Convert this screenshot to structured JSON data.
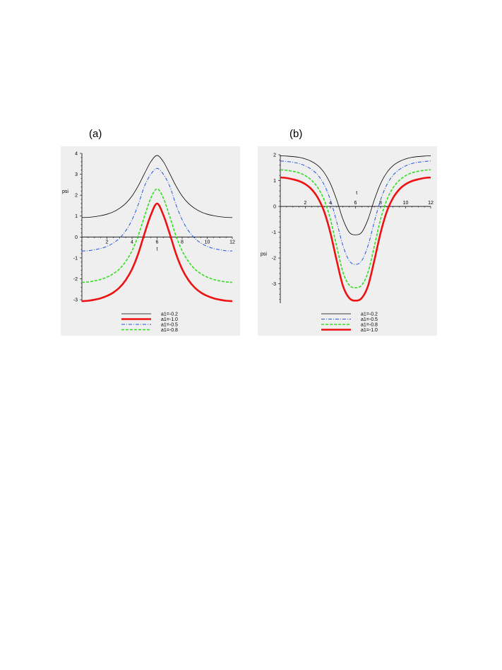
{
  "panels": {
    "a": {
      "label": "(a)"
    },
    "b": {
      "label": "(b)"
    }
  },
  "chart_data": [
    {
      "type": "line",
      "xlabel": "t",
      "ylabel": "psi",
      "xlim": [
        0,
        12
      ],
      "ylim": [
        -3.1,
        4
      ],
      "x_ticks": [
        2,
        4,
        6,
        8,
        10,
        12
      ],
      "y_ticks": [
        -3,
        -2,
        -1,
        0,
        1,
        2,
        3,
        4
      ],
      "legend_position": "bottom",
      "legend": [
        {
          "name": "a1=-0.2",
          "color": "#000000",
          "dash": "solid",
          "width": 0.8
        },
        {
          "name": "a1=-1.0",
          "color": "#ee1111",
          "dash": "solid",
          "width": 2.6
        },
        {
          "name": "a1=-0.5",
          "color": "#2255dd",
          "dash": "dashdot",
          "width": 1.0
        },
        {
          "name": "a1=-0.8",
          "color": "#33dd22",
          "dash": "dash",
          "width": 1.6
        }
      ],
      "x": [
        0,
        0.5,
        1,
        1.5,
        2,
        2.5,
        3,
        3.5,
        4,
        4.5,
        5,
        5.5,
        6,
        6.5,
        7,
        7.5,
        8,
        8.5,
        9,
        9.5,
        10,
        10.5,
        11,
        11.5,
        12
      ],
      "series": [
        {
          "name": "a1=-0.2",
          "values": [
            0.93,
            0.94,
            0.97,
            1.02,
            1.09,
            1.2,
            1.37,
            1.61,
            1.96,
            2.45,
            3.04,
            3.6,
            3.9,
            3.6,
            3.04,
            2.45,
            1.96,
            1.61,
            1.37,
            1.2,
            1.09,
            1.02,
            0.97,
            0.94,
            0.93
          ]
        },
        {
          "name": "a1=-1.0",
          "values": [
            -3.07,
            -3.05,
            -3.0,
            -2.93,
            -2.82,
            -2.66,
            -2.42,
            -2.06,
            -1.54,
            -0.79,
            0.17,
            1.05,
            1.6,
            1.05,
            0.17,
            -0.79,
            -1.54,
            -2.06,
            -2.42,
            -2.66,
            -2.82,
            -2.93,
            -3.0,
            -3.05,
            -3.07
          ]
        },
        {
          "name": "a1=-0.5",
          "values": [
            -0.67,
            -0.66,
            -0.61,
            -0.55,
            -0.45,
            -0.29,
            -0.06,
            0.3,
            0.82,
            1.56,
            2.44,
            3.0,
            3.28,
            3.0,
            2.44,
            1.56,
            0.82,
            0.3,
            -0.06,
            -0.29,
            -0.45,
            -0.55,
            -0.61,
            -0.66,
            -0.67
          ]
        },
        {
          "name": "a1=-0.8",
          "values": [
            -2.17,
            -2.15,
            -2.1,
            -2.03,
            -1.92,
            -1.76,
            -1.53,
            -1.17,
            -0.66,
            0.07,
            1.0,
            1.86,
            2.3,
            1.86,
            1.0,
            0.07,
            -0.66,
            -1.17,
            -1.53,
            -1.76,
            -1.92,
            -2.03,
            -2.1,
            -2.15,
            -2.17
          ]
        }
      ]
    },
    {
      "type": "line",
      "xlabel": "t",
      "ylabel": "psi",
      "xlim": [
        0,
        12
      ],
      "ylim": [
        -3.75,
        2
      ],
      "x_ticks": [
        2,
        4,
        6,
        8,
        10,
        12
      ],
      "y_ticks": [
        -3,
        -2,
        -1,
        0,
        1,
        2
      ],
      "legend_position": "bottom",
      "legend": [
        {
          "name": "a1=-0.2",
          "color": "#000000",
          "dash": "solid",
          "width": 0.8
        },
        {
          "name": "a1=-0.5",
          "color": "#2255dd",
          "dash": "dashdot",
          "width": 1.0
        },
        {
          "name": "a1=-0.8",
          "color": "#33dd22",
          "dash": "dash",
          "width": 1.6
        },
        {
          "name": "a1=-1.0",
          "color": "#ee1111",
          "dash": "solid",
          "width": 2.6
        }
      ],
      "x": [
        0,
        0.5,
        1,
        1.5,
        2,
        2.5,
        3,
        3.5,
        4,
        4.5,
        5,
        5.5,
        6,
        6.5,
        7,
        7.5,
        8,
        8.5,
        9,
        9.5,
        10,
        10.5,
        11,
        11.5,
        12
      ],
      "series": [
        {
          "name": "a1=-0.2",
          "values": [
            1.96,
            1.95,
            1.93,
            1.9,
            1.84,
            1.74,
            1.58,
            1.31,
            0.88,
            0.25,
            -0.5,
            -1.0,
            -1.1,
            -1.0,
            -0.5,
            0.25,
            0.88,
            1.31,
            1.58,
            1.74,
            1.84,
            1.9,
            1.93,
            1.95,
            1.96
          ]
        },
        {
          "name": "a1=-0.5",
          "values": [
            1.76,
            1.74,
            1.71,
            1.66,
            1.57,
            1.43,
            1.21,
            0.84,
            0.25,
            -0.6,
            -1.52,
            -2.1,
            -2.25,
            -2.1,
            -1.52,
            -0.6,
            0.25,
            0.84,
            1.21,
            1.43,
            1.57,
            1.66,
            1.71,
            1.74,
            1.76
          ]
        },
        {
          "name": "a1=-0.8",
          "values": [
            1.42,
            1.4,
            1.36,
            1.3,
            1.19,
            1.01,
            0.72,
            0.25,
            -0.5,
            -1.55,
            -2.55,
            -3.05,
            -3.15,
            -3.05,
            -2.55,
            -1.55,
            -0.5,
            0.25,
            0.72,
            1.01,
            1.19,
            1.3,
            1.36,
            1.4,
            1.42
          ]
        },
        {
          "name": "a1=-1.0",
          "values": [
            1.12,
            1.1,
            1.05,
            0.98,
            0.86,
            0.66,
            0.33,
            -0.2,
            -1.03,
            -2.1,
            -3.08,
            -3.55,
            -3.65,
            -3.55,
            -3.08,
            -2.1,
            -1.03,
            -0.2,
            0.33,
            0.66,
            0.86,
            0.98,
            1.05,
            1.1,
            1.12
          ]
        }
      ]
    }
  ]
}
